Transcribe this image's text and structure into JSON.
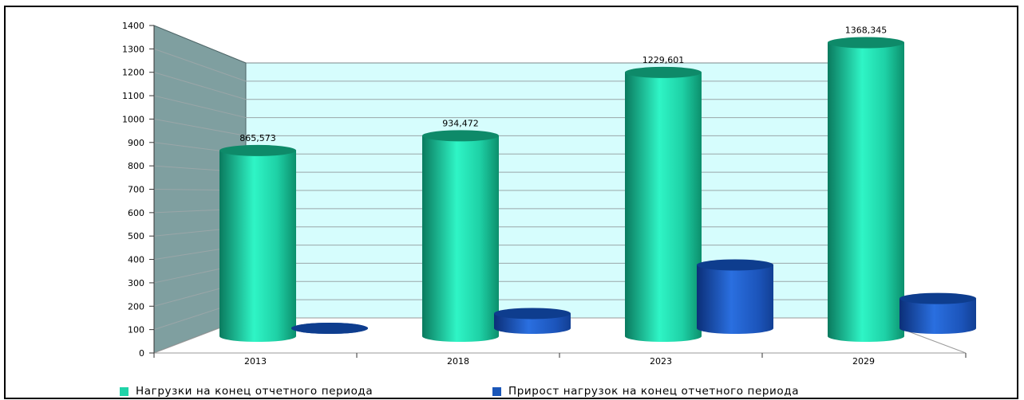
{
  "chart_data": {
    "type": "bar",
    "categories": [
      "2013",
      "2018",
      "2023",
      "2029"
    ],
    "series": [
      {
        "name": "Нагрузки на конец отчетного периода",
        "values": [
          865.573,
          934.472,
          1229.601,
          1368.345
        ],
        "labels": [
          "865,573",
          "934,472",
          "1229,601",
          "1368,345"
        ],
        "color": "#1fd3a8"
      },
      {
        "name": "Прирост нагрузок на конец отчетного периода",
        "values": [
          0,
          68.899,
          295.129,
          138.744
        ],
        "color": "#1a56b8"
      }
    ],
    "ylim": [
      0,
      1400
    ],
    "yticks": [
      0,
      100,
      200,
      300,
      400,
      500,
      600,
      700,
      800,
      900,
      1000,
      1100,
      1200,
      1300,
      1400
    ],
    "grid": true,
    "legend_position": "bottom",
    "colors": {
      "back_wall": "#d6fdfd",
      "side_wall": "#7f9fa0",
      "grid": "#9aa6a8"
    }
  }
}
